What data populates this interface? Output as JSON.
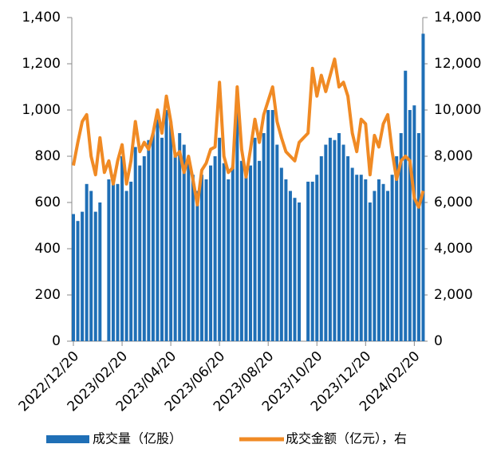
{
  "chart_data": {
    "type": "bar-line",
    "categories": [
      "2022/12/20",
      null,
      null,
      null,
      null,
      null,
      null,
      null,
      null,
      null,
      null,
      "2023/02/20",
      null,
      null,
      null,
      null,
      null,
      null,
      null,
      null,
      null,
      null,
      "2023/04/20",
      null,
      null,
      null,
      null,
      null,
      null,
      null,
      null,
      null,
      null,
      "2023/06/20",
      null,
      null,
      null,
      null,
      null,
      null,
      null,
      null,
      null,
      null,
      "2023/08/20",
      null,
      null,
      null,
      null,
      null,
      null,
      null,
      null,
      null,
      null,
      "2023/10/20",
      null,
      null,
      null,
      null,
      null,
      null,
      null,
      null,
      null,
      null,
      "2023/12/20",
      null,
      null,
      null,
      null,
      null,
      null,
      null,
      null,
      null,
      null,
      "2024/02/20",
      null,
      null
    ],
    "series": [
      {
        "name": "成交量（亿股）",
        "type": "bar",
        "color": "#1f6fb6",
        "values": [
          550,
          520,
          560,
          680,
          650,
          560,
          600,
          null,
          700,
          720,
          680,
          800,
          650,
          690,
          840,
          760,
          800,
          870,
          900,
          960,
          880,
          1000,
          950,
          800,
          900,
          850,
          780,
          720,
          650,
          720,
          700,
          760,
          800,
          880,
          770,
          700,
          760,
          1000,
          780,
          720,
          760,
          880,
          780,
          900,
          1000,
          1000,
          850,
          750,
          700,
          650,
          620,
          600,
          null,
          690,
          690,
          720,
          800,
          850,
          880,
          870,
          900,
          850,
          800,
          750,
          720,
          720,
          700,
          600,
          650,
          700,
          680,
          650,
          720,
          800,
          900,
          1170,
          1000,
          1020,
          900,
          1330
        ]
      },
      {
        "name": "成交金额（亿元），右",
        "type": "line",
        "axis": "y2",
        "color": "#f08a24",
        "values": [
          7600,
          8600,
          9500,
          9800,
          8000,
          7200,
          8800,
          7300,
          7800,
          6800,
          7800,
          8500,
          6800,
          7800,
          9500,
          8200,
          8600,
          8300,
          9000,
          10000,
          9000,
          10600,
          9500,
          8000,
          8200,
          7300,
          8000,
          7000,
          5900,
          7400,
          7700,
          8300,
          8400,
          11200,
          8000,
          7300,
          7500,
          11000,
          8300,
          7100,
          8300,
          9600,
          8600,
          9800,
          10400,
          11000,
          9500,
          8800,
          8200,
          8000,
          7800,
          8600,
          8800,
          9000,
          11800,
          10600,
          11500,
          10800,
          11500,
          12200,
          11000,
          11200,
          10600,
          9000,
          8200,
          9600,
          9400,
          7200,
          8900,
          8400,
          9400,
          9800,
          8200,
          7000,
          7800,
          8000,
          7800,
          6200,
          5800,
          6500
        ]
      }
    ],
    "ylim": [
      0,
      1400
    ],
    "yticks": [
      0,
      200,
      400,
      600,
      800,
      {
        "value": 1000,
        "label": "1,000"
      },
      {
        "value": 1200,
        "label": "1,200"
      },
      {
        "value": 1400,
        "label": "1,400"
      }
    ],
    "y2lim": [
      0,
      14000
    ],
    "y2ticks": [
      0,
      {
        "value": 2000,
        "label": "2,000"
      },
      {
        "value": 4000,
        "label": "4,000"
      },
      {
        "value": 6000,
        "label": "6,000"
      },
      {
        "value": 8000,
        "label": "8,000"
      },
      {
        "value": 10000,
        "label": "10,000"
      },
      {
        "value": 12000,
        "label": "12,000"
      },
      {
        "value": 14000,
        "label": "14,000"
      }
    ],
    "legend": "bottom"
  }
}
